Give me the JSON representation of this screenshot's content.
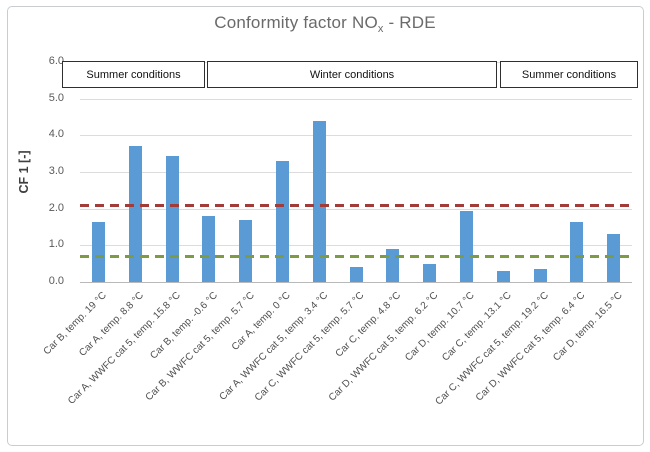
{
  "chart_data": {
    "type": "bar",
    "title": {
      "main": "Conformity factor NO",
      "subscript": "x",
      "suffix": " - RDE"
    },
    "ylabel": "CF 1 [-]",
    "xlabel": "",
    "ylim": [
      0,
      6
    ],
    "ytick_step": 1,
    "yticks": [
      "0.0",
      "1.0",
      "2.0",
      "3.0",
      "4.0",
      "5.0",
      "6.0"
    ],
    "grid": true,
    "legend": "none",
    "bar_color": "#5b9bd5",
    "categories": [
      "Car B, temp. 19 °C",
      "Car A, temp. 8.8 °C",
      "Car A, WWFC cat 5, temp. 15.8 °C",
      "Car B, temp. -0.6 °C",
      "Car B, WWFC cat 5, temp. 5.7 °C",
      "Car A, temp. 0 °C",
      "Car A, WWFC cat 5, temp. 3.4 °C",
      "Car C, WWFC cat 5, temp. 5.7 °C",
      "Car C, temp. 4.8 °C",
      "Car D, WWFC cat 5, temp. 6.2 °C",
      "Car D, temp. 10.7 °C",
      "Car C, temp. 13.1 °C",
      "Car C, WWFC cat 5, temp. 19.2 °C",
      "Car D, WWFC cat 5, temp. 6.4 °C",
      "Car D, temp. 16.5 °C"
    ],
    "values": [
      1.65,
      3.7,
      3.45,
      1.8,
      1.7,
      3.3,
      4.4,
      0.4,
      0.9,
      0.5,
      1.95,
      0.3,
      0.35,
      1.65,
      1.3
    ],
    "reference_lines": [
      {
        "name": "upper-limit-line",
        "value": 2.1,
        "color": "#a23c38",
        "style": "dashed"
      },
      {
        "name": "lower-limit-line",
        "value": 0.7,
        "color": "#7d9b45",
        "style": "dashed"
      }
    ],
    "condition_bands": [
      {
        "label": "Summer conditions",
        "start_bar": 1,
        "end_bar": 3
      },
      {
        "label": "Winter conditions",
        "start_bar": 4,
        "end_bar": 11
      },
      {
        "label": "Summer conditions",
        "start_bar": 12,
        "end_bar": 15
      }
    ]
  }
}
